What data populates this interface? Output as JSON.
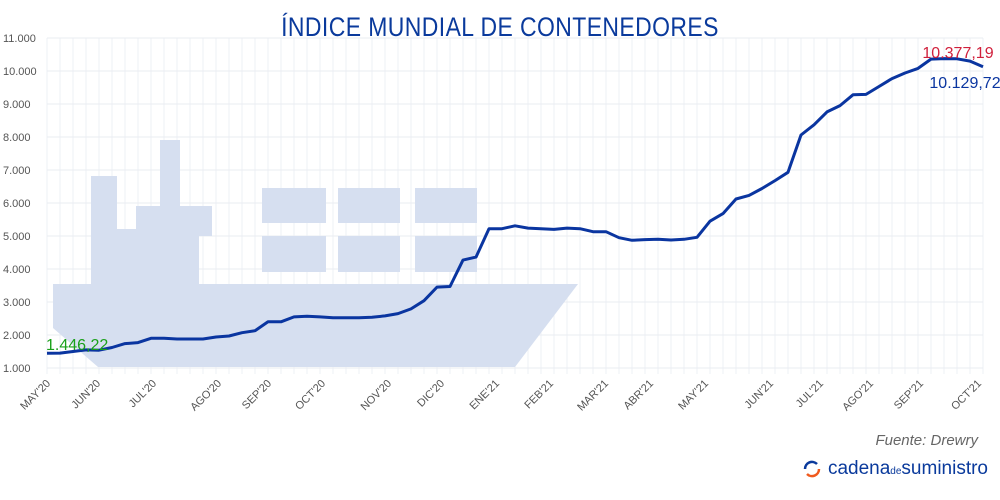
{
  "chart_data": {
    "type": "line",
    "title": "ÍNDICE MUNDIAL DE CONTENEDORES",
    "xlabel": "",
    "ylabel": "",
    "ylim": [
      1000,
      11000
    ],
    "y_ticks": [
      "1.000",
      "2.000",
      "3.000",
      "4.000",
      "5.000",
      "6.000",
      "7.000",
      "8.000",
      "9.000",
      "10.000",
      "11.000"
    ],
    "x_ticks": [
      "MAY'20",
      "JUN'20",
      "JUL'20",
      "AGO'20",
      "SEP'20",
      "OCT'20",
      "NOV'20",
      "DIC'20",
      "ENE'21",
      "FEB'21",
      "MAR'21",
      "ABR'21",
      "MAY'21",
      "JUN'21",
      "JUL'21",
      "AGO'21",
      "SEP'21",
      "OCT'21"
    ],
    "grid": true,
    "series": [
      {
        "color": "#0a35a0",
        "frequency": "weekly",
        "values": [
          1446,
          1450,
          1500,
          1550,
          1540,
          1620,
          1740,
          1770,
          1900,
          1900,
          1880,
          1880,
          1880,
          1940,
          1970,
          2070,
          2130,
          2400,
          2400,
          2550,
          2570,
          2550,
          2520,
          2520,
          2520,
          2540,
          2580,
          2650,
          2790,
          3040,
          3450,
          3470,
          4270,
          4360,
          5220,
          5220,
          5310,
          5240,
          5220,
          5200,
          5240,
          5220,
          5130,
          5130,
          4950,
          4870,
          4890,
          4900,
          4880,
          4900,
          4960,
          5450,
          5680,
          6120,
          6230,
          6440,
          6680,
          6930,
          8060,
          8370,
          8760,
          8950,
          9280,
          9290,
          9530,
          9770,
          9940,
          10080,
          10360,
          10377.19,
          10370,
          10300,
          10129.72
        ]
      }
    ],
    "annotations": [
      {
        "text": "1.446,22",
        "color": "#1aa01a"
      },
      {
        "text": "10.377,19",
        "color": "#d0203c"
      },
      {
        "text": "10.129,72",
        "color": "#0a35a0"
      }
    ]
  },
  "source": "Fuente: Drewry",
  "logo": {
    "part1": "cadena",
    "part2": "de",
    "part3": "suministro"
  }
}
